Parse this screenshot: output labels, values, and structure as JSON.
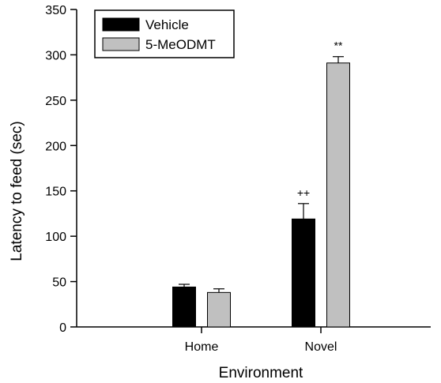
{
  "chart_data": {
    "type": "bar",
    "title": "",
    "xlabel": "Environment",
    "ylabel": "Latency to feed (sec)",
    "ylim": [
      0,
      350
    ],
    "yticks": [
      0,
      50,
      100,
      150,
      200,
      250,
      300,
      350
    ],
    "categories": [
      "Home",
      "Novel"
    ],
    "series": [
      {
        "name": "Vehicle",
        "color": "#000000",
        "values": [
          44,
          119
        ],
        "errors": [
          3,
          17
        ],
        "annotations": [
          "",
          "++"
        ]
      },
      {
        "name": "5-MeODMT",
        "color": "#c0c0c0",
        "values": [
          38,
          291
        ],
        "errors": [
          4,
          7
        ],
        "annotations": [
          "",
          "**"
        ]
      }
    ],
    "legend_position": "top-left",
    "grid": false,
    "error_bars": "upper"
  }
}
